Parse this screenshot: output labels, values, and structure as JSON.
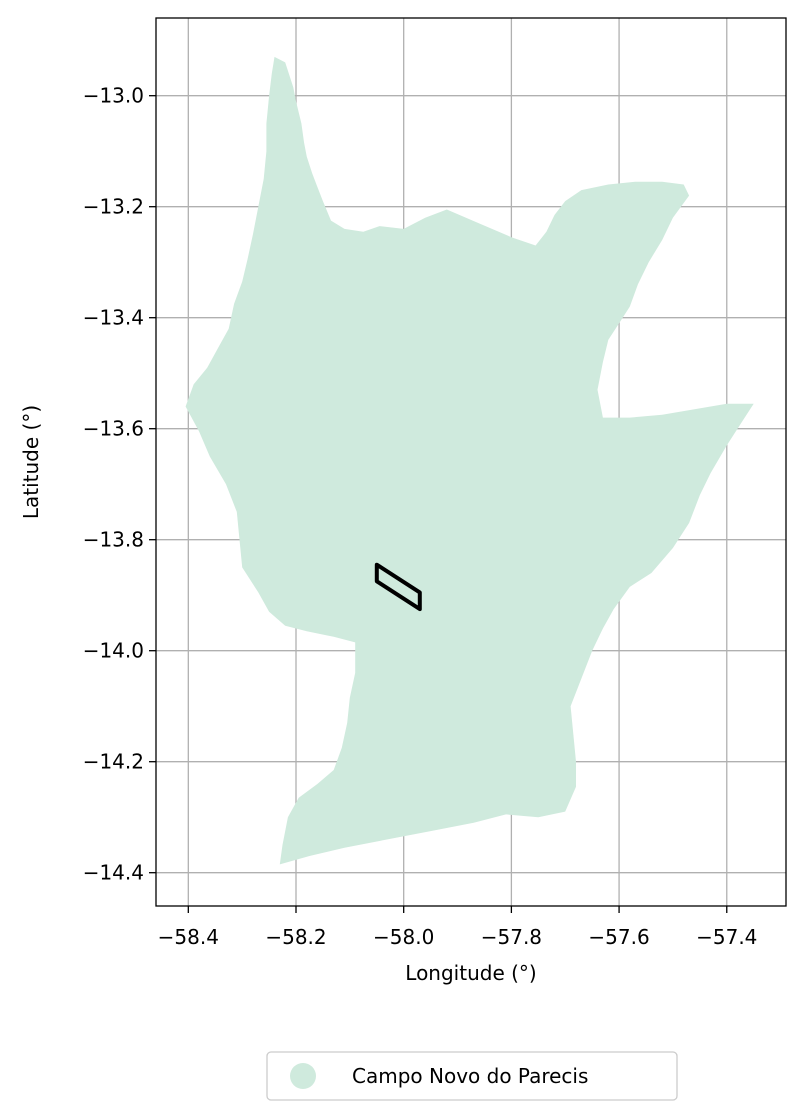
{
  "chart_data": {
    "type": "map",
    "xlabel": "Longitude (°)",
    "ylabel": "Latitude (°)",
    "xlim": [
      -58.46,
      -57.29
    ],
    "ylim": [
      -14.46,
      -12.86
    ],
    "x_ticks": [
      -58.4,
      -58.2,
      -58.0,
      -57.8,
      -57.6,
      -57.4
    ],
    "x_tick_labels": [
      "−58.4",
      "−58.2",
      "−58.0",
      "−57.8",
      "−57.6",
      "−57.4"
    ],
    "y_ticks": [
      -13.0,
      -13.2,
      -13.4,
      -13.6,
      -13.8,
      -14.0,
      -14.2,
      -14.4
    ],
    "y_tick_labels": [
      "−13.0",
      "−13.2",
      "−13.4",
      "−13.6",
      "−13.8",
      "−14.0",
      "−14.2",
      "−14.4"
    ],
    "grid": true,
    "legend_position": "bottom-center",
    "legend": [
      {
        "label": "Campo Novo do Parecis",
        "color": "#cfeadd"
      }
    ],
    "municipality": {
      "name": "Campo Novo do Parecis",
      "fill": "#cfeadd",
      "boundary": [
        [
          -58.24,
          -12.93
        ],
        [
          -58.22,
          -12.94
        ],
        [
          -58.205,
          -12.985
        ],
        [
          -58.2,
          -13.01
        ],
        [
          -58.19,
          -13.05
        ],
        [
          -58.185,
          -13.085
        ],
        [
          -58.18,
          -13.11
        ],
        [
          -58.17,
          -13.14
        ],
        [
          -58.16,
          -13.165
        ],
        [
          -58.15,
          -13.19
        ],
        [
          -58.135,
          -13.225
        ],
        [
          -58.11,
          -13.24
        ],
        [
          -58.075,
          -13.245
        ],
        [
          -58.045,
          -13.235
        ],
        [
          -58.0,
          -13.24
        ],
        [
          -57.96,
          -13.22
        ],
        [
          -57.92,
          -13.205
        ],
        [
          -57.86,
          -13.23
        ],
        [
          -57.8,
          -13.255
        ],
        [
          -57.755,
          -13.27
        ],
        [
          -57.735,
          -13.245
        ],
        [
          -57.72,
          -13.215
        ],
        [
          -57.7,
          -13.19
        ],
        [
          -57.67,
          -13.17
        ],
        [
          -57.62,
          -13.16
        ],
        [
          -57.57,
          -13.155
        ],
        [
          -57.52,
          -13.155
        ],
        [
          -57.48,
          -13.16
        ],
        [
          -57.47,
          -13.18
        ],
        [
          -57.5,
          -13.22
        ],
        [
          -57.52,
          -13.26
        ],
        [
          -57.545,
          -13.3
        ],
        [
          -57.565,
          -13.34
        ],
        [
          -57.58,
          -13.38
        ],
        [
          -57.6,
          -13.41
        ],
        [
          -57.62,
          -13.44
        ],
        [
          -57.63,
          -13.48
        ],
        [
          -57.64,
          -13.53
        ],
        [
          -57.63,
          -13.58
        ],
        [
          -57.58,
          -13.58
        ],
        [
          -57.52,
          -13.575
        ],
        [
          -57.46,
          -13.565
        ],
        [
          -57.4,
          -13.555
        ],
        [
          -57.35,
          -13.555
        ],
        [
          -57.37,
          -13.585
        ],
        [
          -57.4,
          -13.63
        ],
        [
          -57.43,
          -13.68
        ],
        [
          -57.45,
          -13.72
        ],
        [
          -57.47,
          -13.77
        ],
        [
          -57.5,
          -13.815
        ],
        [
          -57.54,
          -13.86
        ],
        [
          -57.58,
          -13.885
        ],
        [
          -57.61,
          -13.925
        ],
        [
          -57.63,
          -13.96
        ],
        [
          -57.65,
          -14.0
        ],
        [
          -57.67,
          -14.05
        ],
        [
          -57.69,
          -14.1
        ],
        [
          -57.685,
          -14.15
        ],
        [
          -57.68,
          -14.2
        ],
        [
          -57.68,
          -14.245
        ],
        [
          -57.7,
          -14.29
        ],
        [
          -57.75,
          -14.3
        ],
        [
          -57.81,
          -14.295
        ],
        [
          -57.87,
          -14.31
        ],
        [
          -57.95,
          -14.325
        ],
        [
          -58.03,
          -14.34
        ],
        [
          -58.11,
          -14.355
        ],
        [
          -58.175,
          -14.37
        ],
        [
          -58.23,
          -14.385
        ],
        [
          -58.225,
          -14.35
        ],
        [
          -58.215,
          -14.3
        ],
        [
          -58.195,
          -14.265
        ],
        [
          -58.16,
          -14.24
        ],
        [
          -58.13,
          -14.215
        ],
        [
          -58.115,
          -14.175
        ],
        [
          -58.105,
          -14.13
        ],
        [
          -58.1,
          -14.085
        ],
        [
          -58.09,
          -14.04
        ],
        [
          -58.09,
          -13.985
        ],
        [
          -58.13,
          -13.975
        ],
        [
          -58.18,
          -13.965
        ],
        [
          -58.22,
          -13.955
        ],
        [
          -58.25,
          -13.93
        ],
        [
          -58.27,
          -13.895
        ],
        [
          -58.3,
          -13.85
        ],
        [
          -58.305,
          -13.8
        ],
        [
          -58.31,
          -13.75
        ],
        [
          -58.33,
          -13.7
        ],
        [
          -58.36,
          -13.65
        ],
        [
          -58.38,
          -13.605
        ],
        [
          -58.405,
          -13.56
        ],
        [
          -58.39,
          -13.52
        ],
        [
          -58.365,
          -13.49
        ],
        [
          -58.345,
          -13.455
        ],
        [
          -58.325,
          -13.42
        ],
        [
          -58.315,
          -13.375
        ],
        [
          -58.3,
          -13.335
        ],
        [
          -58.29,
          -13.295
        ],
        [
          -58.28,
          -13.25
        ],
        [
          -58.27,
          -13.2
        ],
        [
          -58.26,
          -13.15
        ],
        [
          -58.255,
          -13.1
        ],
        [
          -58.255,
          -13.05
        ],
        [
          -58.25,
          -13.0
        ],
        [
          -58.245,
          -12.96
        ]
      ]
    },
    "highlighted_area": {
      "stroke": "#000000",
      "boundary": [
        [
          -58.05,
          -13.845
        ],
        [
          -57.97,
          -13.895
        ],
        [
          -57.97,
          -13.925
        ],
        [
          -58.05,
          -13.875
        ],
        [
          -58.05,
          -13.845
        ]
      ]
    }
  }
}
